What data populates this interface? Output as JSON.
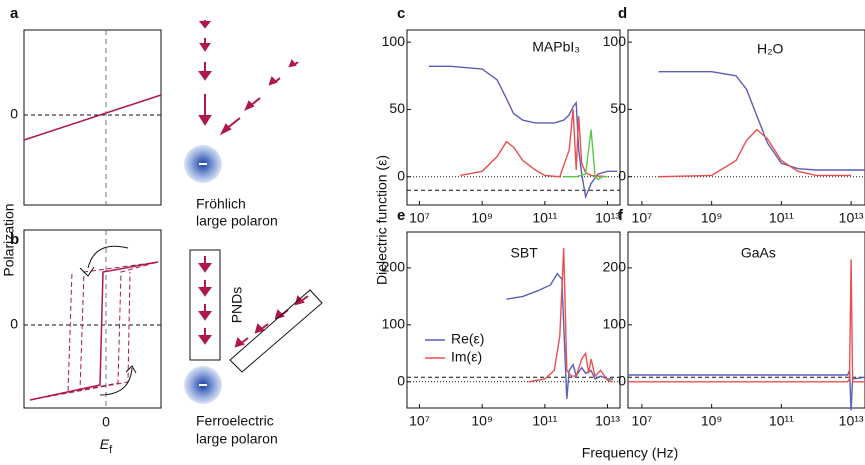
{
  "schematic": {
    "a": {
      "label": "a",
      "y_tick": "0"
    },
    "b": {
      "label": "b",
      "y_tick": "0",
      "x_tick": "0",
      "x_label": {
        "main": "E",
        "sub": "f"
      }
    },
    "y_label": "Polarization",
    "top_caption": [
      "Fröhlich",
      "large polaron"
    ],
    "pnds": "PNDs",
    "bottom_caption": [
      "Ferroelectric",
      "large polaron"
    ]
  },
  "shared": {
    "y_label": "Dielectric function (ε)",
    "x_label": "Frequency (Hz)"
  },
  "chart_data": [
    {
      "type": "line",
      "panel": "c",
      "title": "MAPbI₃",
      "log_x": true,
      "xlim": [
        4000000,
        25000000000000
      ],
      "ylim": [
        -21,
        109
      ],
      "yticks": [
        0,
        50,
        100
      ],
      "xticks": [
        {
          "value": 10000000,
          "label": "10⁷"
        },
        {
          "value": 1000000000,
          "label": "10⁹"
        },
        {
          "value": 100000000000,
          "label": "10¹¹"
        },
        {
          "value": 10000000000000,
          "label": "10¹³"
        }
      ],
      "reference_lines": [
        {
          "value": 0,
          "style": "dotted"
        },
        {
          "value": -10,
          "style": "dashed"
        }
      ],
      "series": [
        {
          "color": "#5b5fb5",
          "x": [
            20000000,
            100000000,
            1000000000,
            3000000000,
            6000000000,
            10000000000,
            20000000000,
            50000000000,
            100000000000,
            200000000000,
            400000000000,
            600000000000,
            800000000000,
            1000000000000,
            1200000000000,
            1500000000000,
            2000000000000,
            3000000000000,
            5000000000000,
            10000000000000,
            20000000000000
          ],
          "values": [
            82,
            82,
            80,
            72,
            58,
            47,
            42,
            40,
            40,
            40,
            42,
            46,
            52,
            55,
            20,
            2,
            -15,
            -5,
            2,
            4,
            4
          ]
        },
        {
          "color": "#e8504f",
          "x": [
            200000000,
            1000000000,
            3000000000,
            6000000000,
            10000000000,
            20000000000,
            50000000000,
            100000000000,
            300000000000,
            600000000000,
            800000000000,
            1000000000000,
            1200000000000,
            1500000000000,
            2000000000000,
            3000000000000,
            10000000000000
          ],
          "values": [
            1,
            4,
            15,
            26,
            22,
            12,
            5,
            1,
            0,
            20,
            50,
            5,
            45,
            10,
            3,
            1,
            0
          ]
        },
        {
          "color": "#5cc84a",
          "x": [
            400000000000,
            1000000000000,
            2000000000000,
            3000000000000,
            4000000000000,
            5000000000000,
            7000000000000,
            10000000000000
          ],
          "values": [
            0,
            0,
            2,
            35,
            0,
            -2,
            0,
            0
          ]
        }
      ]
    },
    {
      "type": "line",
      "panel": "d",
      "title": "H₂O",
      "log_x": true,
      "xlim": [
        4000000,
        25000000000000
      ],
      "ylim": [
        -21,
        109
      ],
      "yticks": [
        0,
        50,
        100
      ],
      "xticks": [
        {
          "value": 10000000,
          "label": "10⁷"
        },
        {
          "value": 1000000000,
          "label": "10⁹"
        },
        {
          "value": 100000000000,
          "label": "10¹¹"
        },
        {
          "value": 10000000000000,
          "label": "10¹³"
        }
      ],
      "reference_lines": [
        {
          "value": 0,
          "style": "dotted"
        }
      ],
      "series": [
        {
          "color": "#5b5fb5",
          "x": [
            30000000,
            1000000000,
            5000000000,
            10000000000,
            20000000000,
            40000000000,
            100000000000,
            300000000000,
            1000000000000,
            10000000000000,
            25000000000000
          ],
          "values": [
            78,
            78,
            75,
            65,
            45,
            25,
            10,
            6,
            5,
            5,
            5
          ]
        },
        {
          "color": "#e8504f",
          "x": [
            30000000,
            1000000000,
            5000000000,
            10000000000,
            20000000000,
            40000000000,
            100000000000,
            300000000000,
            1000000000000,
            10000000000000
          ],
          "values": [
            0,
            1,
            12,
            27,
            35,
            28,
            12,
            4,
            1,
            1
          ]
        }
      ]
    },
    {
      "type": "line",
      "panel": "e",
      "title": "SBT",
      "log_x": true,
      "xlim": [
        4000000,
        25000000000000
      ],
      "ylim": [
        -46,
        263
      ],
      "yticks": [
        0,
        100,
        200
      ],
      "xticks": [
        {
          "value": 10000000,
          "label": "10⁷"
        },
        {
          "value": 1000000000,
          "label": "10⁹"
        },
        {
          "value": 100000000000,
          "label": "10¹¹"
        },
        {
          "value": 10000000000000,
          "label": "10¹³"
        }
      ],
      "reference_lines": [
        {
          "value": 0,
          "style": "dotted"
        },
        {
          "value": 8,
          "style": "dashed"
        }
      ],
      "series": [
        {
          "name": "Re(ε)",
          "color": "#5b5fb5",
          "x": [
            6000000000,
            20000000000,
            60000000000,
            150000000000,
            250000000000,
            350000000000,
            400000000000,
            500000000000,
            600000000000,
            800000000000,
            1000000000000,
            1500000000000,
            2000000000000,
            3000000000000,
            4000000000000,
            6000000000000,
            10000000000000,
            15000000000000
          ],
          "values": [
            145,
            150,
            160,
            170,
            190,
            180,
            100,
            -30,
            20,
            30,
            10,
            25,
            15,
            20,
            5,
            10,
            5,
            5
          ]
        },
        {
          "name": "Im(ε)",
          "color": "#e8504f",
          "x": [
            30000000000,
            100000000000,
            200000000000,
            300000000000,
            400000000000,
            500000000000,
            700000000000,
            1000000000000,
            1500000000000,
            2000000000000,
            2500000000000,
            3000000000000,
            4000000000000,
            6000000000000,
            10000000000000,
            15000000000000
          ],
          "values": [
            0,
            5,
            20,
            80,
            235,
            20,
            10,
            10,
            40,
            50,
            15,
            40,
            10,
            20,
            3,
            0
          ]
        }
      ]
    },
    {
      "type": "line",
      "panel": "f",
      "title": "GaAs",
      "log_x": true,
      "xlim": [
        4000000,
        25000000000000
      ],
      "ylim": [
        -46,
        263
      ],
      "yticks": [
        0,
        100,
        200
      ],
      "xticks": [
        {
          "value": 10000000,
          "label": "10⁷"
        },
        {
          "value": 1000000000,
          "label": "10⁹"
        },
        {
          "value": 100000000000,
          "label": "10¹¹"
        },
        {
          "value": 10000000000000,
          "label": "10¹³"
        }
      ],
      "reference_lines": [
        {
          "value": 8,
          "style": "dashed"
        }
      ],
      "series": [
        {
          "color": "#5b5fb5",
          "x": [
            4000000,
            8000000000000,
            9000000000000,
            10000000000000,
            11000000000000,
            25000000000000
          ],
          "values": [
            12,
            12,
            20,
            -50,
            5,
            8
          ]
        },
        {
          "color": "#e8504f",
          "x": [
            4000000,
            8000000000000,
            9000000000000,
            10000000000000,
            11000000000000,
            25000000000000
          ],
          "values": [
            0,
            0,
            5,
            215,
            0,
            0
          ]
        }
      ]
    }
  ]
}
